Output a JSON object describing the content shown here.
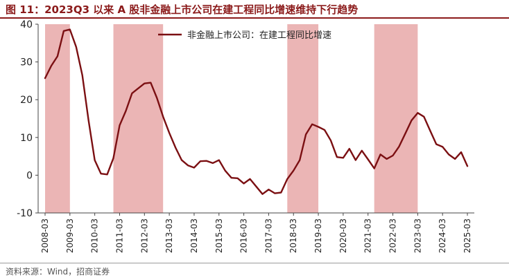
{
  "figure": {
    "title": "图 11：2023Q3 以来 A 股非金融上市公司在建工程同比增速维持下行趋势",
    "source": "资料来源：Wind，招商证券"
  },
  "colors": {
    "line": "#7B0F12",
    "shade": "#E8A8A8",
    "title": "#8B1A1A",
    "axis": "#444444"
  },
  "chart_data": {
    "type": "line",
    "xlabel": "",
    "ylabel": "",
    "ylim": [
      -10,
      40
    ],
    "yticks": [
      -10,
      0,
      10,
      20,
      30,
      40
    ],
    "xlim": [
      "2008-03",
      "2025-03"
    ],
    "xticks": [
      "2008-03",
      "2009-03",
      "2010-03",
      "2011-03",
      "2012-03",
      "2013-03",
      "2014-03",
      "2015-03",
      "2016-03",
      "2017-03",
      "2018-03",
      "2019-03",
      "2020-03",
      "2021-03",
      "2022-03",
      "2023-03",
      "2024-03",
      "2025-03"
    ],
    "grid": false,
    "legend_position": "top-center",
    "shaded_periods": [
      {
        "start": "2008-03",
        "end": "2009-03"
      },
      {
        "start": "2010-12",
        "end": "2012-12"
      },
      {
        "start": "2017-12",
        "end": "2019-03"
      },
      {
        "start": "2021-06",
        "end": "2023-03"
      }
    ],
    "series": [
      {
        "name": "非金融上市公司：在建工程同比增速",
        "x": [
          "2008-03",
          "2008-06",
          "2008-09",
          "2008-12",
          "2009-03",
          "2009-06",
          "2009-09",
          "2009-12",
          "2010-03",
          "2010-06",
          "2010-09",
          "2010-12",
          "2011-03",
          "2011-06",
          "2011-09",
          "2011-12",
          "2012-03",
          "2012-06",
          "2012-09",
          "2012-12",
          "2013-03",
          "2013-06",
          "2013-09",
          "2013-12",
          "2014-03",
          "2014-06",
          "2014-09",
          "2014-12",
          "2015-03",
          "2015-06",
          "2015-09",
          "2015-12",
          "2016-03",
          "2016-06",
          "2016-09",
          "2016-12",
          "2017-03",
          "2017-06",
          "2017-09",
          "2017-12",
          "2018-03",
          "2018-06",
          "2018-09",
          "2018-12",
          "2019-03",
          "2019-06",
          "2019-09",
          "2019-12",
          "2020-03",
          "2020-06",
          "2020-09",
          "2020-12",
          "2021-03",
          "2021-06",
          "2021-09",
          "2021-12",
          "2022-03",
          "2022-06",
          "2022-09",
          "2022-12",
          "2023-03",
          "2023-06",
          "2023-09",
          "2023-12",
          "2024-03",
          "2024-06",
          "2024-09",
          "2024-12",
          "2025-03"
        ],
        "y": [
          25.7,
          29.0,
          31.5,
          38.2,
          38.6,
          34.0,
          26.5,
          14.5,
          4.0,
          0.4,
          0.2,
          4.5,
          13.2,
          17.0,
          21.7,
          23.0,
          24.3,
          24.5,
          20.5,
          15.5,
          11.2,
          7.3,
          4.0,
          2.6,
          2.0,
          3.7,
          3.8,
          3.2,
          4.0,
          1.2,
          -0.7,
          -0.8,
          -2.2,
          -1.0,
          -3.0,
          -5.0,
          -3.8,
          -4.8,
          -4.6,
          -1.0,
          1.2,
          4.0,
          10.8,
          13.5,
          12.8,
          12.0,
          9.2,
          4.8,
          4.6,
          7.0,
          4.0,
          6.5,
          4.2,
          1.8,
          5.5,
          4.3,
          5.2,
          7.6,
          11.0,
          14.5,
          16.5,
          15.5,
          11.8,
          8.2,
          7.5,
          5.5,
          4.3,
          6.1,
          2.4
        ]
      }
    ]
  }
}
